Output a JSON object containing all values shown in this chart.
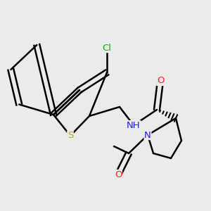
{
  "bg_color": "#ebebeb",
  "atom_colors": {
    "C": "#000000",
    "N": "#1a1aff",
    "O": "#ff2020",
    "S": "#c8a800",
    "Cl": "#00bb00",
    "H": "#000000"
  },
  "figsize": [
    3.0,
    3.0
  ],
  "dpi": 100
}
